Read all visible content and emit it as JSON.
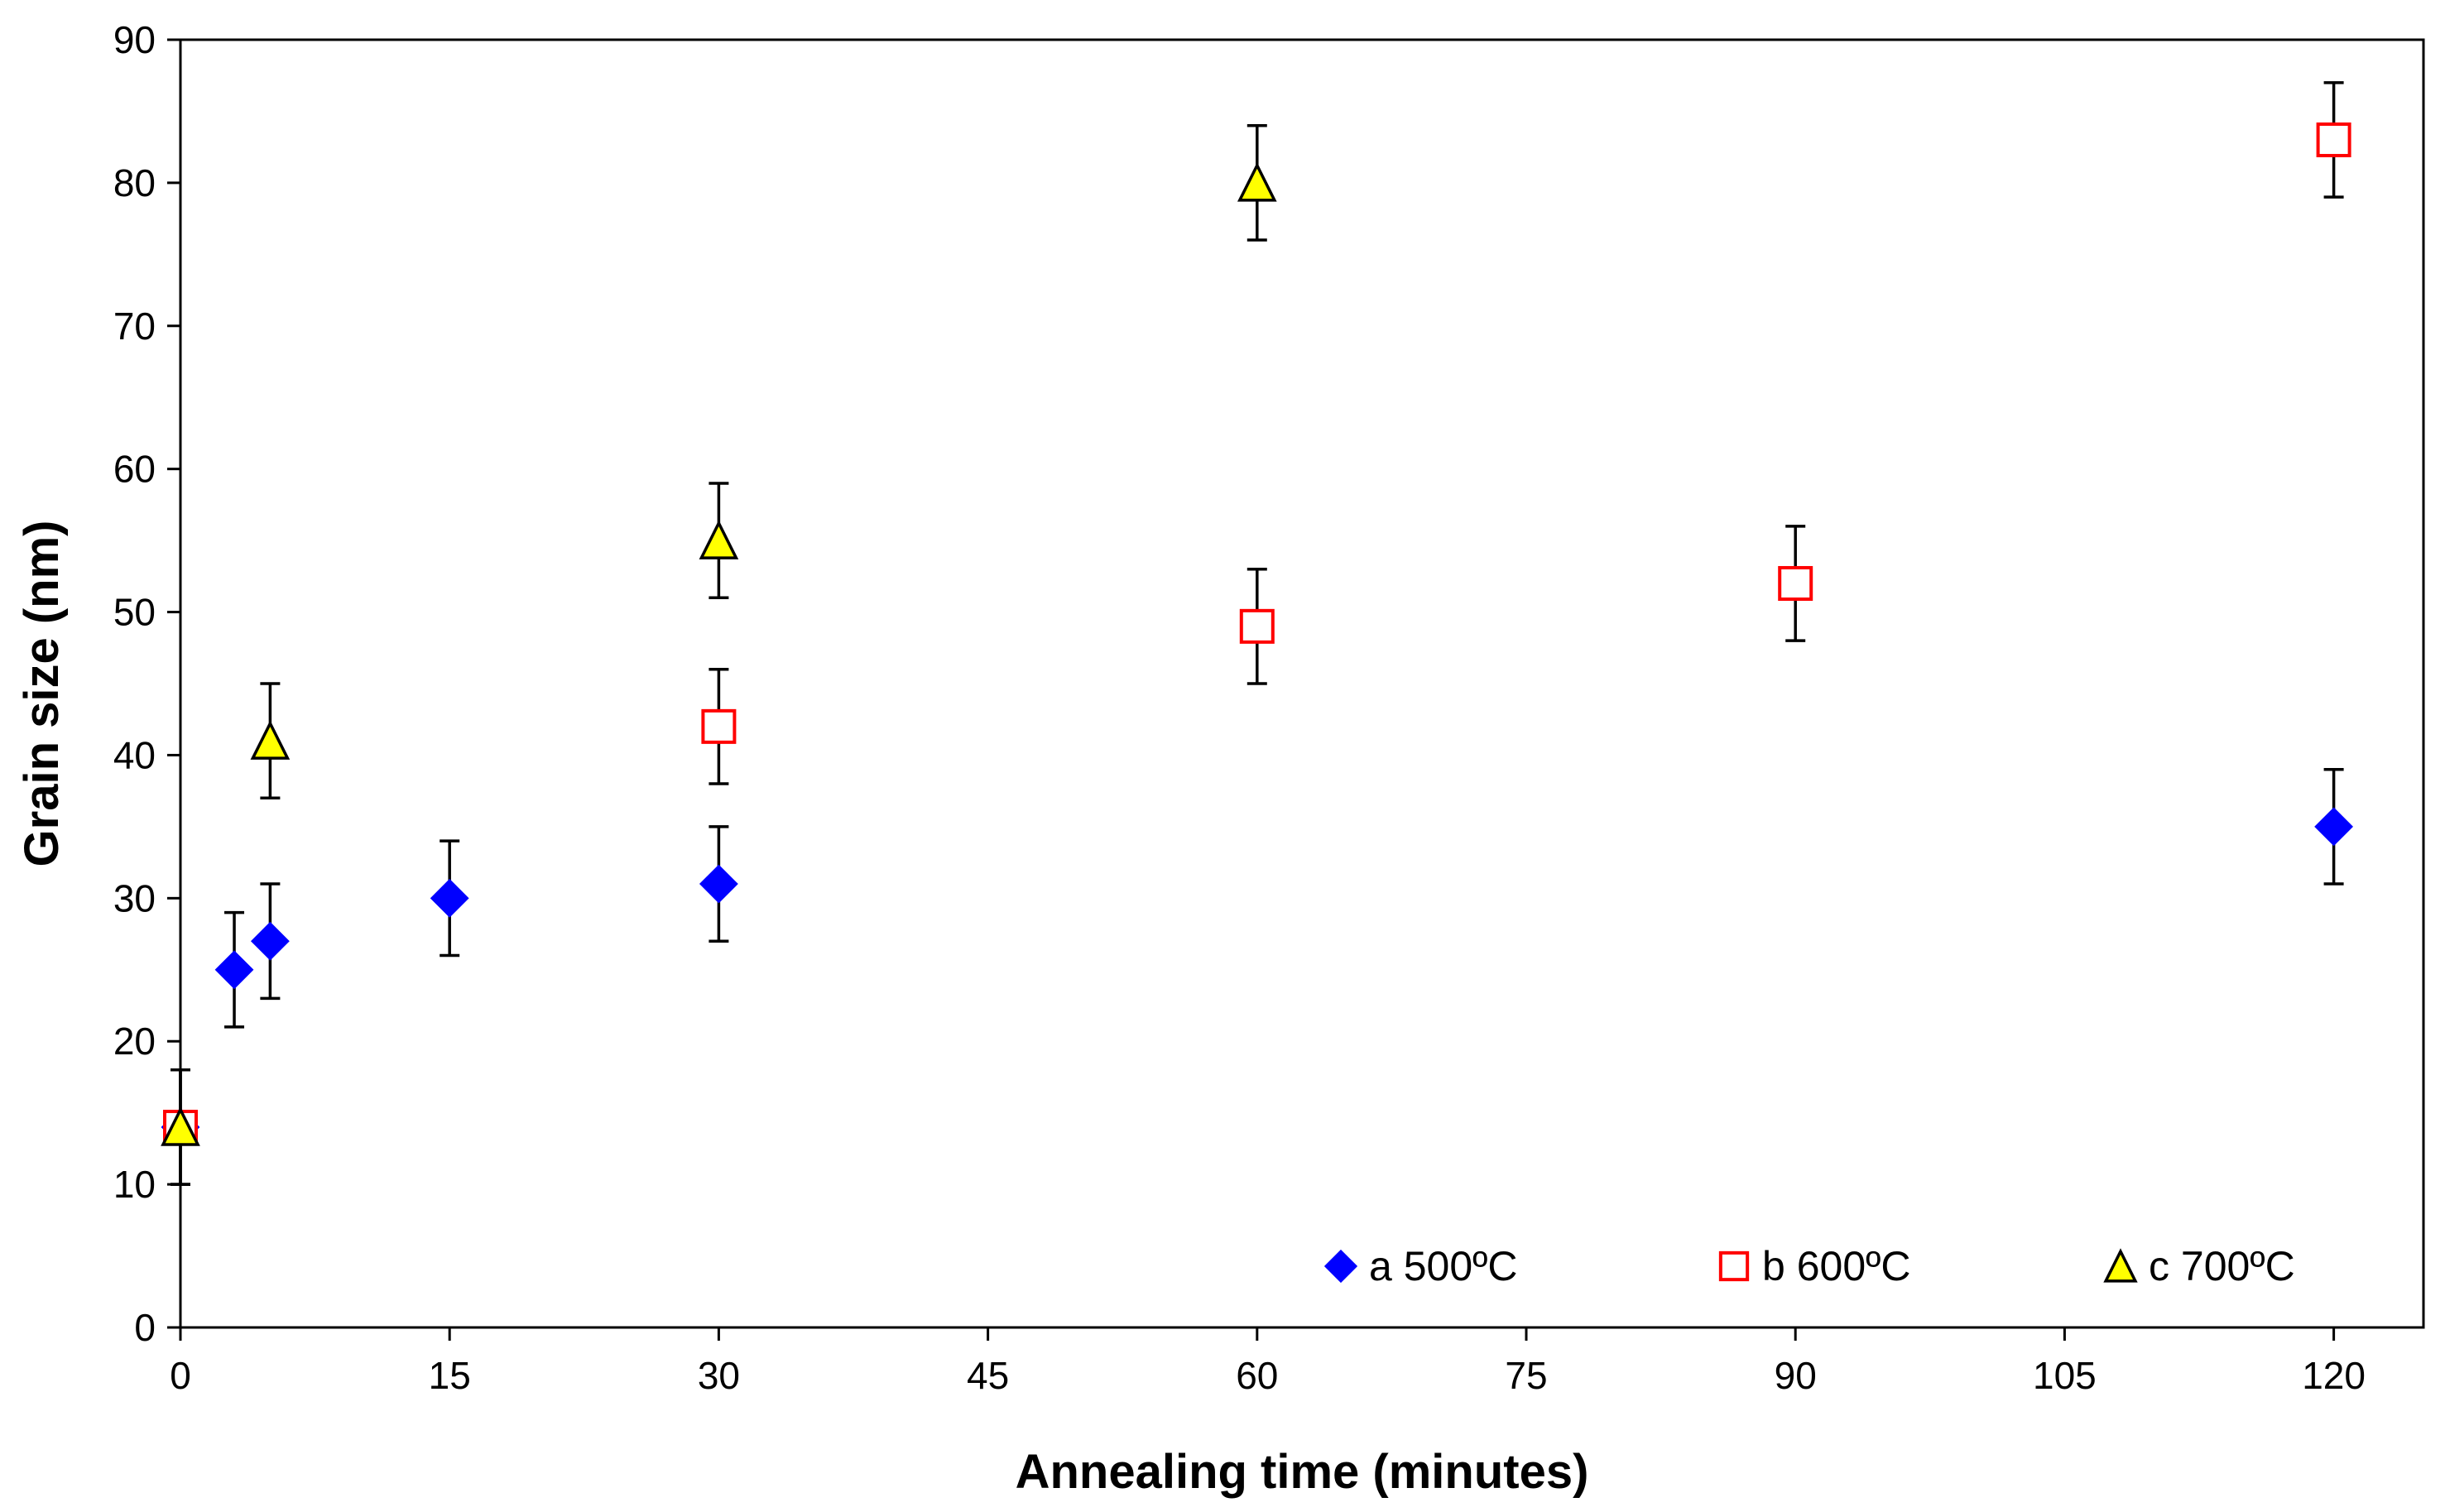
{
  "chart_data": {
    "type": "scatter",
    "title": "",
    "xlabel": "Annealing time (minutes)",
    "ylabel": "Grain size (nm)",
    "xlim": [
      0,
      125
    ],
    "ylim": [
      0,
      90
    ],
    "xticks": [
      0,
      15,
      30,
      45,
      60,
      75,
      90,
      105,
      120
    ],
    "yticks": [
      0,
      10,
      20,
      30,
      40,
      50,
      60,
      70,
      80,
      90
    ],
    "grid": false,
    "legend_position": "bottom-right",
    "error_bar": 4,
    "series": [
      {
        "name": "a 500ºC",
        "marker": "diamond",
        "color": "#0000ff",
        "points": [
          {
            "x": 0,
            "y": 14
          },
          {
            "x": 3,
            "y": 25
          },
          {
            "x": 5,
            "y": 27
          },
          {
            "x": 15,
            "y": 30
          },
          {
            "x": 30,
            "y": 31
          },
          {
            "x": 120,
            "y": 35
          }
        ]
      },
      {
        "name": "b 600ºC",
        "marker": "square-open",
        "color": "#ff0000",
        "points": [
          {
            "x": 0,
            "y": 14
          },
          {
            "x": 30,
            "y": 42
          },
          {
            "x": 60,
            "y": 49
          },
          {
            "x": 90,
            "y": 52
          },
          {
            "x": 120,
            "y": 83
          }
        ]
      },
      {
        "name": "c  700ºC",
        "marker": "triangle",
        "color": "#ffff00",
        "points": [
          {
            "x": 0,
            "y": 14
          },
          {
            "x": 5,
            "y": 41
          },
          {
            "x": 30,
            "y": 55
          },
          {
            "x": 60,
            "y": 80
          }
        ]
      }
    ]
  }
}
